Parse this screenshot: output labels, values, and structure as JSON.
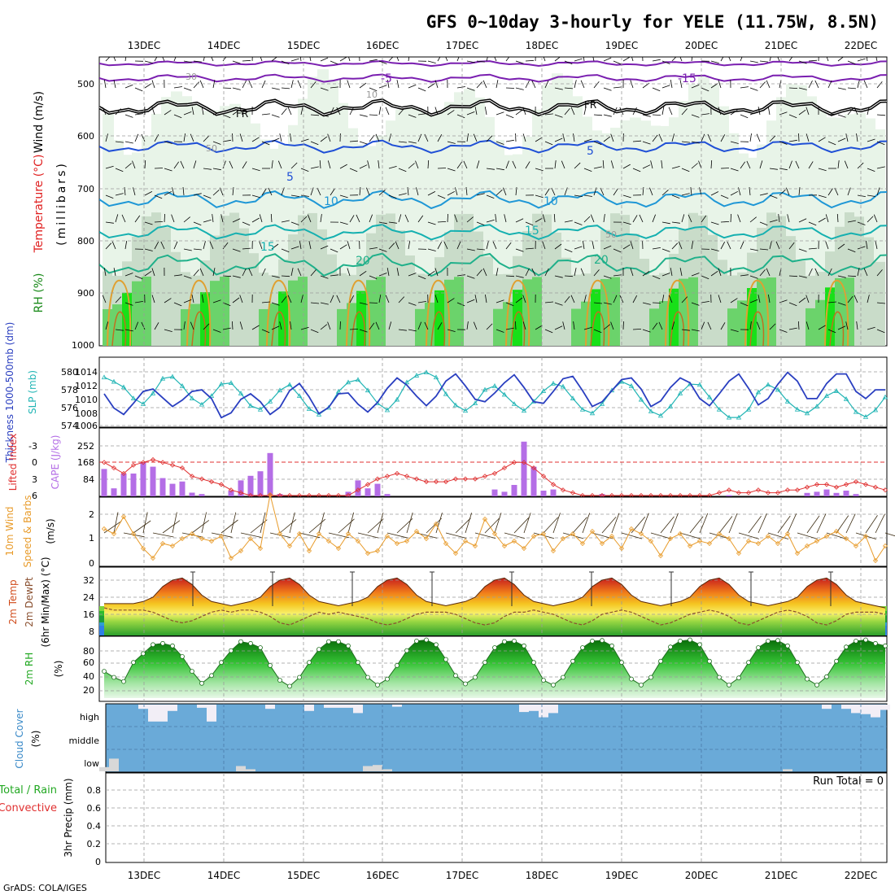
{
  "title": "GFS 0~10day 3-hourly for YELE (11.75W, 8.5N)",
  "credit": "GrADS: COLA/IGES",
  "days": [
    "13DEC",
    "14DEC",
    "15DEC",
    "16DEC",
    "17DEC",
    "18DEC",
    "19DEC",
    "20DEC",
    "21DEC",
    "22DEC"
  ],
  "colors": {
    "thickness": "#2a3fc0",
    "slp": "#22b5b5",
    "lifted": "#e03030",
    "cape": "#b46ee6",
    "wind10": "#e89b2a",
    "rh_green": "#22a822",
    "cloud": "#6aaad8",
    "cloud_gap": "#f2eef6",
    "temp_line": "#e07820",
    "grid": "#999999"
  },
  "panels": {
    "upper": {
      "label_wind": "Wind (m/s)",
      "label_temp": "Temperature (°C)",
      "label_rh": "RH (%)",
      "label_mb": "(millibars)",
      "yticks": [
        "500",
        "600",
        "700",
        "800",
        "900",
        "1000"
      ],
      "isotherm_labels": [
        "5",
        "10",
        "15",
        "20",
        "5",
        "10",
        "15",
        "20",
        "-5",
        "-15",
        "FR",
        "FR",
        "30",
        "10",
        "50",
        "50"
      ]
    },
    "thickness": {
      "label_a": "Thickness 1000-500mb (dm)",
      "label_b": "SLP (mb)",
      "yticks_left": [
        "580",
        "578",
        "576",
        "574"
      ],
      "yticks_right": [
        "1014",
        "1012",
        "1010",
        "1008",
        "1006"
      ]
    },
    "cape": {
      "label_a": "Lifted Index",
      "label_b": "CAPE (J/kg)",
      "yticks_left": [
        "-3",
        "0",
        "3",
        "6"
      ],
      "yticks_right": [
        "252",
        "168",
        "84"
      ]
    },
    "wind10": {
      "label_a": "10m Wind",
      "label_b": "Speed & Barbs",
      "label_c": "(m/s)",
      "yticks": [
        "2",
        "1",
        "0"
      ]
    },
    "temp2m": {
      "label_a": "2m Temp",
      "label_b": "2m DewPt",
      "label_c": "(6hr Min/Max) (°C)",
      "yticks": [
        "32",
        "24",
        "16",
        "8"
      ]
    },
    "rh2m": {
      "label_a": "2m RH",
      "label_b": "(%)",
      "yticks": [
        "80",
        "60",
        "40",
        "20"
      ]
    },
    "cloud": {
      "label_a": "Cloud Cover",
      "label_b": "(%)",
      "levels": [
        "high",
        "middle",
        "low"
      ]
    },
    "precip": {
      "label_a": "Total / Rain",
      "label_b": "Convective",
      "label_c": "3hr Precip (mm)",
      "yticks": [
        "0.8",
        "0.6",
        "0.4",
        "0.2",
        "0"
      ],
      "run_total": "Run Total = 0"
    }
  },
  "chart_data": {
    "type": "line",
    "x_unit": "3-hourly steps from 12DEC 12Z",
    "slp_mb": [
      1013.8,
      1013.1,
      1012.2,
      1010.4,
      1009.5,
      1011.2,
      1013.6,
      1013.9,
      1012.4,
      1010.4,
      1009.4,
      1010.8,
      1012.7,
      1012.9,
      1011.2,
      1009.2,
      1008.6,
      1009.9,
      1011.7,
      1012.6,
      1010.8,
      1008.7,
      1007.8,
      1008.9,
      1011.5,
      1013.0,
      1013.4,
      1011.7,
      1009.6,
      1008.5,
      1010.2,
      1013.0,
      1014.1,
      1014.6,
      1013.8,
      1011.1,
      1009.3,
      1008.4,
      1009.6,
      1011.8,
      1012.4,
      1011.0,
      1009.5,
      1008.4,
      1009.9,
      1011.6,
      1012.8,
      1012.3,
      1010.4,
      1008.6,
      1008.0,
      1009.5,
      1011.7,
      1013.1,
      1012.4,
      1010.2,
      1008.3,
      1007.6,
      1009.1,
      1011.2,
      1012.7,
      1012.6,
      1010.6,
      1008.6,
      1007.3,
      1007.3,
      1008.6,
      1011.4,
      1012.6,
      1011.8,
      1009.9,
      1008.6,
      1008.0,
      1009.1,
      1010.8,
      1011.6,
      1010.3,
      1008.2,
      1007.4,
      1008.5,
      1010.6
    ],
    "thickness_dm": [
      578.0,
      576.2,
      575.4,
      576.8,
      578.3,
      578.6,
      577.5,
      576.4,
      577.2,
      578.3,
      578.5,
      577.4,
      575.0,
      575.6,
      577.3,
      578.0,
      577.0,
      575.4,
      576.3,
      578.4,
      579.3,
      577.6,
      575.5,
      576.3,
      578.0,
      578.1,
      576.7,
      575.7,
      576.9,
      578.7,
      580.0,
      579.1,
      577.7,
      576.5,
      577.7,
      579.6,
      580.5,
      579.0,
      577.3,
      577.0,
      578.1,
      579.4,
      580.4,
      578.8,
      577.0,
      576.8,
      578.3,
      579.9,
      580.2,
      578.4,
      576.4,
      577.0,
      578.4,
      579.8,
      580.0,
      578.6,
      576.4,
      577.1,
      578.8,
      580.0,
      579.4,
      577.4,
      576.5,
      578.0,
      579.6,
      580.5,
      578.7,
      576.6,
      577.4,
      579.2,
      580.7,
      579.6,
      577.4,
      577.4,
      579.3,
      580.5,
      580.5,
      578.3,
      577.4,
      578.5,
      578.5
    ],
    "cape_jkg": [
      120,
      35,
      100,
      100,
      150,
      130,
      80,
      55,
      65,
      16,
      10,
      0,
      0,
      25,
      70,
      90,
      110,
      190,
      10,
      0,
      0,
      0,
      0,
      0,
      0,
      20,
      70,
      35,
      55,
      10,
      0,
      0,
      0,
      0,
      0,
      0,
      0,
      0,
      0,
      0,
      30,
      20,
      50,
      240,
      130,
      25,
      30,
      0,
      0,
      0,
      0,
      10,
      0,
      0,
      0,
      0,
      0,
      0,
      0,
      0,
      0,
      0,
      0,
      0,
      5,
      0,
      0,
      0,
      0,
      0,
      0,
      0,
      15,
      20,
      30,
      15,
      25,
      10,
      0,
      0,
      0
    ],
    "lifted_index": [
      0,
      1,
      2,
      0.5,
      0,
      -0.5,
      0,
      0.5,
      1,
      2.5,
      3,
      3.5,
      4,
      5,
      5.5,
      6,
      6,
      6,
      6,
      6,
      6,
      6,
      6,
      6,
      6,
      6,
      5,
      4,
      3,
      2.5,
      2,
      2.5,
      3,
      3.5,
      3.5,
      3.5,
      3,
      3,
      3,
      2.5,
      2,
      1,
      0,
      0,
      1,
      2.5,
      4,
      5,
      5.5,
      6,
      6,
      6,
      6,
      6,
      6,
      6,
      6,
      6,
      6,
      6,
      6,
      6,
      6,
      5.5,
      5,
      5.5,
      5.5,
      5,
      5.5,
      5.5,
      5,
      5,
      4.5,
      4,
      4,
      4.5,
      4,
      3.5,
      4,
      4.5,
      5
    ],
    "wind10_ms": [
      1.4,
      1.2,
      1.9,
      1.2,
      0.6,
      0.2,
      0.8,
      0.7,
      1.0,
      1.2,
      1.0,
      0.9,
      1.1,
      0.2,
      0.5,
      1.0,
      0.6,
      2.8,
      1.2,
      0.7,
      1.2,
      0.5,
      1.2,
      0.9,
      0.6,
      1.2,
      0.9,
      0.4,
      0.5,
      1.1,
      0.8,
      0.9,
      1.3,
      1.0,
      1.6,
      0.8,
      0.4,
      0.9,
      0.7,
      1.8,
      1.2,
      0.7,
      0.9,
      0.6,
      1.1,
      1.2,
      0.5,
      1.0,
      1.2,
      0.8,
      1.3,
      0.8,
      1.1,
      0.6,
      1.4,
      1.2,
      0.9,
      0.3,
      1.0,
      1.2,
      0.7,
      0.9,
      0.8,
      1.2,
      1.0,
      0.4,
      0.9,
      0.8,
      1.1,
      0.8,
      1.2,
      0.4,
      0.7,
      0.9,
      1.1,
      1.3,
      1.0,
      0.7,
      1.1,
      0.1,
      0.7
    ],
    "temp2m_c": [
      21,
      21,
      21,
      21,
      22,
      24,
      29,
      32,
      33,
      30,
      25,
      22,
      21,
      20,
      21,
      22,
      24,
      29,
      32,
      33,
      30,
      25,
      22,
      21,
      20,
      21,
      22,
      24,
      29,
      32,
      33,
      30,
      25,
      22,
      21,
      20,
      21,
      22,
      24,
      29,
      32,
      33,
      30,
      25,
      22,
      21,
      20,
      21,
      22,
      24,
      29,
      32,
      33,
      30,
      25,
      22,
      21,
      20,
      21,
      22,
      24,
      29,
      32,
      33,
      30,
      25,
      22,
      21,
      20,
      21,
      22,
      24,
      29,
      32,
      33,
      30,
      25,
      22,
      21,
      20,
      19
    ],
    "dewpt2m_c": [
      19,
      18,
      18,
      18,
      18,
      17,
      15,
      13,
      12,
      13,
      15,
      17,
      18,
      17,
      18,
      18,
      17,
      15,
      12,
      11,
      13,
      15,
      17,
      16,
      17,
      16,
      15,
      14,
      12,
      11,
      12,
      14,
      16,
      17,
      17,
      17,
      16,
      14,
      12,
      11,
      12,
      15,
      17,
      17,
      18,
      17,
      16,
      14,
      12,
      11,
      13,
      16,
      17,
      18,
      17,
      15,
      13,
      11,
      12,
      14,
      16,
      17,
      18,
      17,
      15,
      12,
      11,
      13,
      15,
      17,
      18,
      17,
      15,
      12,
      11,
      13,
      16,
      17,
      17,
      17,
      16
    ],
    "rh2m_pct": [
      45,
      35,
      28,
      60,
      75,
      90,
      92,
      88,
      70,
      45,
      25,
      38,
      60,
      80,
      95,
      92,
      85,
      55,
      30,
      20,
      35,
      60,
      82,
      95,
      95,
      88,
      60,
      35,
      22,
      32,
      55,
      80,
      96,
      98,
      90,
      65,
      38,
      24,
      35,
      60,
      85,
      95,
      96,
      88,
      60,
      30,
      22,
      35,
      62,
      85,
      96,
      97,
      88,
      60,
      32,
      22,
      35,
      62,
      86,
      96,
      98,
      90,
      62,
      35,
      22,
      34,
      60,
      85,
      96,
      97,
      88,
      60,
      32,
      22,
      36,
      62,
      86,
      96,
      98,
      92,
      88
    ],
    "cloud_high_pct": [
      0,
      0,
      0,
      0,
      20,
      80,
      80,
      30,
      0,
      0,
      15,
      80,
      0,
      0,
      0,
      0,
      0,
      20,
      0,
      0,
      0,
      30,
      0,
      15,
      15,
      15,
      40,
      0,
      0,
      0,
      10,
      0,
      0,
      0,
      0,
      0,
      0,
      0,
      0,
      0,
      0,
      0,
      0,
      35,
      30,
      60,
      40,
      0,
      0,
      0,
      0,
      0,
      0,
      0,
      0,
      0,
      0,
      0,
      0,
      0,
      0,
      0,
      0,
      0,
      0,
      0,
      0,
      0,
      0,
      0,
      0,
      0,
      0,
      0,
      20,
      0,
      20,
      40,
      45,
      60,
      25
    ],
    "cloud_low_pct": [
      20,
      60,
      0,
      0,
      0,
      0,
      0,
      0,
      0,
      0,
      0,
      0,
      0,
      0,
      25,
      10,
      0,
      0,
      0,
      0,
      0,
      0,
      0,
      0,
      0,
      0,
      0,
      25,
      30,
      10,
      0,
      0,
      0,
      0,
      0,
      0,
      0,
      0,
      0,
      0,
      0,
      0,
      0,
      0,
      0,
      0,
      0,
      0,
      0,
      0,
      0,
      0,
      0,
      0,
      0,
      0,
      0,
      0,
      0,
      0,
      0,
      0,
      0,
      0,
      0,
      0,
      0,
      0,
      0,
      0,
      10,
      0,
      0,
      0,
      0,
      0,
      0,
      0,
      0,
      0,
      0
    ],
    "precip_3hr_mm": [
      0,
      0,
      0,
      0,
      0,
      0,
      0,
      0,
      0,
      0,
      0,
      0,
      0,
      0,
      0,
      0,
      0,
      0,
      0,
      0,
      0,
      0,
      0,
      0,
      0,
      0,
      0,
      0,
      0,
      0,
      0,
      0,
      0,
      0,
      0,
      0,
      0,
      0,
      0,
      0,
      0,
      0,
      0,
      0,
      0,
      0,
      0,
      0,
      0,
      0,
      0,
      0,
      0,
      0,
      0,
      0,
      0,
      0,
      0,
      0,
      0,
      0,
      0,
      0,
      0,
      0,
      0,
      0,
      0,
      0,
      0,
      0,
      0,
      0,
      0,
      0,
      0,
      0,
      0,
      0,
      0
    ],
    "ranges": {
      "thickness_dm": [
        574,
        582
      ],
      "slp_mb": [
        1006,
        1016
      ],
      "lifted_index": [
        6,
        -5
      ],
      "cape_jkg": [
        0,
        300
      ],
      "wind10_ms": [
        0,
        2.8
      ],
      "temp2m_c": [
        6,
        38
      ],
      "rh2m_pct": [
        10,
        100
      ],
      "precip_mm": [
        0,
        1.0
      ]
    }
  }
}
